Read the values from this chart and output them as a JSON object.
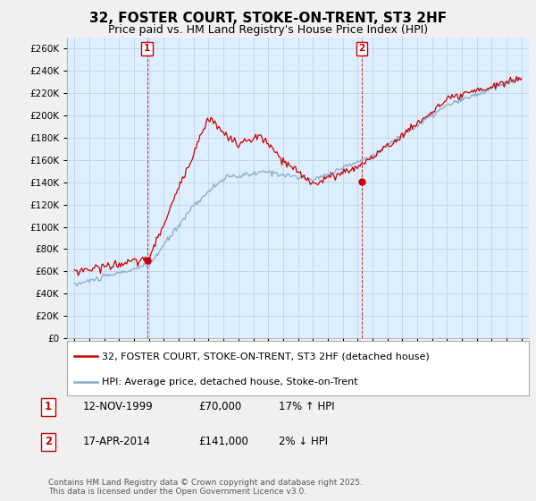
{
  "title": "32, FOSTER COURT, STOKE-ON-TRENT, ST3 2HF",
  "subtitle": "Price paid vs. HM Land Registry's House Price Index (HPI)",
  "ylim": [
    0,
    270000
  ],
  "yticks": [
    0,
    20000,
    40000,
    60000,
    80000,
    100000,
    120000,
    140000,
    160000,
    180000,
    200000,
    220000,
    240000,
    260000
  ],
  "ytick_labels": [
    "£0",
    "£20K",
    "£40K",
    "£60K",
    "£80K",
    "£100K",
    "£120K",
    "£140K",
    "£160K",
    "£180K",
    "£200K",
    "£220K",
    "£240K",
    "£260K"
  ],
  "bg_color": "#f0f0f0",
  "plot_bg_color": "#ddeeff",
  "grid_color": "#bbccdd",
  "red_color": "#cc0000",
  "blue_color": "#88aacc",
  "legend_line1": "32, FOSTER COURT, STOKE-ON-TRENT, ST3 2HF (detached house)",
  "legend_line2": "HPI: Average price, detached house, Stoke-on-Trent",
  "note1_label": "1",
  "note1_date": "12-NOV-1999",
  "note1_price": "£70,000",
  "note1_hpi": "17% ↑ HPI",
  "note2_label": "2",
  "note2_date": "17-APR-2014",
  "note2_price": "£141,000",
  "note2_hpi": "2% ↓ HPI",
  "footer": "Contains HM Land Registry data © Crown copyright and database right 2025.\nThis data is licensed under the Open Government Licence v3.0."
}
